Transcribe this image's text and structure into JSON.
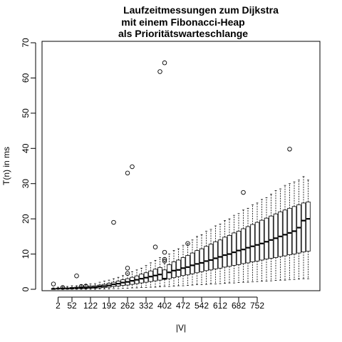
{
  "chart_data": {
    "type": "boxplot",
    "title_lines": [
      "Laufzeitmessungen zum Dijkstra",
      "mit einem Fibonacci-Heap",
      "als Prioritätswarteschlange"
    ],
    "xlabel": "|V|",
    "ylabel": "T(n) in ms",
    "ylim": [
      0,
      70
    ],
    "yticks": [
      0,
      10,
      20,
      30,
      40,
      50,
      60,
      70
    ],
    "xtick_labels": [
      "2",
      "52",
      "122",
      "192",
      "262",
      "332",
      "402",
      "472",
      "542",
      "612",
      "682",
      "752"
    ],
    "xtick_box_indices": [
      1,
      4,
      8,
      12,
      16,
      20,
      24,
      28,
      32,
      36,
      40,
      44
    ],
    "grid": false,
    "legend": "none",
    "colors": {
      "box_fill": "#ffffff",
      "stroke": "#000000",
      "median": "#000000"
    },
    "boxes": [
      {
        "min": 0,
        "q1": 0,
        "median": 0.1,
        "q3": 0.2,
        "max": 0.4,
        "outliers": [
          1.5
        ]
      },
      {
        "min": 0,
        "q1": 0.1,
        "median": 0.2,
        "q3": 0.3,
        "max": 0.6,
        "outliers": []
      },
      {
        "min": 0,
        "q1": 0.1,
        "median": 0.2,
        "q3": 0.4,
        "max": 0.8,
        "outliers": [
          0.5
        ]
      },
      {
        "min": 0,
        "q1": 0.1,
        "median": 0.2,
        "q3": 0.4,
        "max": 0.8,
        "outliers": []
      },
      {
        "min": 0,
        "q1": 0.1,
        "median": 0.3,
        "q3": 0.5,
        "max": 1.0,
        "outliers": []
      },
      {
        "min": 0,
        "q1": 0.2,
        "median": 0.3,
        "q3": 0.6,
        "max": 1.0,
        "outliers": [
          3.8
        ]
      },
      {
        "min": 0,
        "q1": 0.2,
        "median": 0.4,
        "q3": 0.7,
        "max": 1.2,
        "outliers": [
          0.8
        ]
      },
      {
        "min": 0,
        "q1": 0.2,
        "median": 0.4,
        "q3": 0.8,
        "max": 1.3,
        "outliers": [
          0.9
        ]
      },
      {
        "min": 0,
        "q1": 0.3,
        "median": 0.5,
        "q3": 0.9,
        "max": 1.5,
        "outliers": []
      },
      {
        "min": 0,
        "q1": 0.3,
        "median": 0.6,
        "q3": 1.0,
        "max": 1.6,
        "outliers": []
      },
      {
        "min": 0.1,
        "q1": 0.4,
        "median": 0.8,
        "q3": 1.2,
        "max": 2.0,
        "outliers": []
      },
      {
        "min": 0.1,
        "q1": 0.5,
        "median": 0.9,
        "q3": 1.4,
        "max": 2.3,
        "outliers": []
      },
      {
        "min": 0.1,
        "q1": 0.6,
        "median": 1.1,
        "q3": 1.7,
        "max": 2.6,
        "outliers": []
      },
      {
        "min": 0.2,
        "q1": 0.8,
        "median": 1.4,
        "q3": 2.0,
        "max": 3.0,
        "outliers": [
          19.0
        ]
      },
      {
        "min": 0.2,
        "q1": 0.9,
        "median": 1.6,
        "q3": 2.3,
        "max": 3.4,
        "outliers": []
      },
      {
        "min": 0.3,
        "q1": 1.1,
        "median": 1.9,
        "q3": 2.7,
        "max": 3.9,
        "outliers": []
      },
      {
        "min": 0.3,
        "q1": 1.2,
        "median": 2.1,
        "q3": 3.0,
        "max": 4.5,
        "outliers": [
          33.0,
          6.0,
          4.5
        ]
      },
      {
        "min": 0.4,
        "q1": 1.4,
        "median": 2.4,
        "q3": 3.4,
        "max": 5.0,
        "outliers": [
          34.8
        ]
      },
      {
        "min": 0.4,
        "q1": 1.6,
        "median": 2.7,
        "q3": 3.8,
        "max": 5.5,
        "outliers": []
      },
      {
        "min": 0.5,
        "q1": 1.8,
        "median": 3.0,
        "q3": 4.3,
        "max": 6.0,
        "outliers": []
      },
      {
        "min": 0.5,
        "q1": 2.0,
        "median": 3.3,
        "q3": 4.7,
        "max": 6.8,
        "outliers": []
      },
      {
        "min": 0.6,
        "q1": 2.2,
        "median": 3.6,
        "q3": 5.2,
        "max": 7.5,
        "outliers": []
      },
      {
        "min": 0.6,
        "q1": 2.4,
        "median": 3.9,
        "q3": 5.7,
        "max": 8.2,
        "outliers": [
          12.0
        ]
      },
      {
        "min": 0.7,
        "q1": 2.6,
        "median": 4.2,
        "q3": 6.2,
        "max": 9.0,
        "outliers": [
          61.8
        ]
      },
      {
        "min": 0.8,
        "q1": 2.8,
        "median": 3.0,
        "q3": 5.5,
        "max": 9.0,
        "outliers": [
          64.3,
          10.5,
          8.5,
          8.0
        ]
      },
      {
        "min": 0.8,
        "q1": 3.0,
        "median": 4.8,
        "q3": 7.0,
        "max": 10.0,
        "outliers": []
      },
      {
        "min": 0.9,
        "q1": 3.3,
        "median": 5.3,
        "q3": 7.8,
        "max": 11.0,
        "outliers": []
      },
      {
        "min": 1.0,
        "q1": 3.6,
        "median": 5.5,
        "q3": 8.3,
        "max": 11.5,
        "outliers": []
      },
      {
        "min": 1.0,
        "q1": 3.9,
        "median": 6.0,
        "q3": 9.0,
        "max": 12.5,
        "outliers": []
      },
      {
        "min": 1.1,
        "q1": 4.1,
        "median": 6.3,
        "q3": 9.6,
        "max": 13.0,
        "outliers": [
          13.0
        ]
      },
      {
        "min": 1.2,
        "q1": 4.4,
        "median": 6.8,
        "q3": 10.3,
        "max": 14.0,
        "outliers": []
      },
      {
        "min": 1.3,
        "q1": 4.7,
        "median": 7.2,
        "q3": 11.0,
        "max": 15.0,
        "outliers": []
      },
      {
        "min": 1.3,
        "q1": 5.0,
        "median": 7.5,
        "q3": 11.5,
        "max": 15.5,
        "outliers": []
      },
      {
        "min": 1.4,
        "q1": 5.3,
        "median": 8.0,
        "q3": 12.2,
        "max": 16.5,
        "outliers": []
      },
      {
        "min": 1.5,
        "q1": 5.5,
        "median": 8.3,
        "q3": 12.8,
        "max": 17.0,
        "outliers": []
      },
      {
        "min": 1.5,
        "q1": 5.8,
        "median": 8.8,
        "q3": 13.5,
        "max": 18.0,
        "outliers": []
      },
      {
        "min": 1.6,
        "q1": 6.0,
        "median": 9.2,
        "q3": 14.0,
        "max": 18.5,
        "outliers": []
      },
      {
        "min": 1.7,
        "q1": 6.3,
        "median": 9.7,
        "q3": 14.8,
        "max": 19.5,
        "outliers": []
      },
      {
        "min": 1.8,
        "q1": 6.5,
        "median": 10.0,
        "q3": 15.3,
        "max": 20.0,
        "outliers": []
      },
      {
        "min": 1.8,
        "q1": 6.8,
        "median": 10.5,
        "q3": 16.0,
        "max": 21.0,
        "outliers": []
      },
      {
        "min": 1.9,
        "q1": 7.0,
        "median": 11.0,
        "q3": 16.5,
        "max": 21.5,
        "outliers": []
      },
      {
        "min": 2.0,
        "q1": 7.3,
        "median": 11.3,
        "q3": 17.2,
        "max": 22.5,
        "outliers": [
          27.5
        ]
      },
      {
        "min": 2.0,
        "q1": 7.5,
        "median": 11.8,
        "q3": 17.8,
        "max": 23.0,
        "outliers": []
      },
      {
        "min": 2.1,
        "q1": 7.8,
        "median": 12.2,
        "q3": 18.4,
        "max": 24.0,
        "outliers": []
      },
      {
        "min": 2.2,
        "q1": 8.0,
        "median": 12.6,
        "q3": 19.0,
        "max": 24.5,
        "outliers": []
      },
      {
        "min": 2.3,
        "q1": 8.3,
        "median": 13.0,
        "q3": 19.6,
        "max": 25.5,
        "outliers": []
      },
      {
        "min": 2.3,
        "q1": 8.6,
        "median": 13.5,
        "q3": 20.2,
        "max": 26.0,
        "outliers": []
      },
      {
        "min": 2.4,
        "q1": 8.8,
        "median": 14.0,
        "q3": 20.8,
        "max": 27.0,
        "outliers": []
      },
      {
        "min": 2.5,
        "q1": 9.0,
        "median": 14.5,
        "q3": 21.4,
        "max": 28.0,
        "outliers": []
      },
      {
        "min": 2.6,
        "q1": 9.3,
        "median": 15.0,
        "q3": 22.0,
        "max": 28.5,
        "outliers": []
      },
      {
        "min": 2.6,
        "q1": 9.5,
        "median": 15.5,
        "q3": 22.5,
        "max": 29.5,
        "outliers": []
      },
      {
        "min": 2.7,
        "q1": 9.8,
        "median": 16.0,
        "q3": 23.0,
        "max": 30.0,
        "outliers": [
          39.8
        ]
      },
      {
        "min": 2.8,
        "q1": 10.0,
        "median": 16.5,
        "q3": 23.5,
        "max": 30.5,
        "outliers": []
      },
      {
        "min": 2.9,
        "q1": 10.3,
        "median": 17.5,
        "q3": 24.0,
        "max": 31.0,
        "outliers": []
      },
      {
        "min": 3.0,
        "q1": 10.6,
        "median": 19.5,
        "q3": 24.5,
        "max": 32.0,
        "outliers": []
      },
      {
        "min": 3.0,
        "q1": 10.8,
        "median": 20.0,
        "q3": 24.8,
        "max": 31.0,
        "outliers": []
      }
    ]
  }
}
